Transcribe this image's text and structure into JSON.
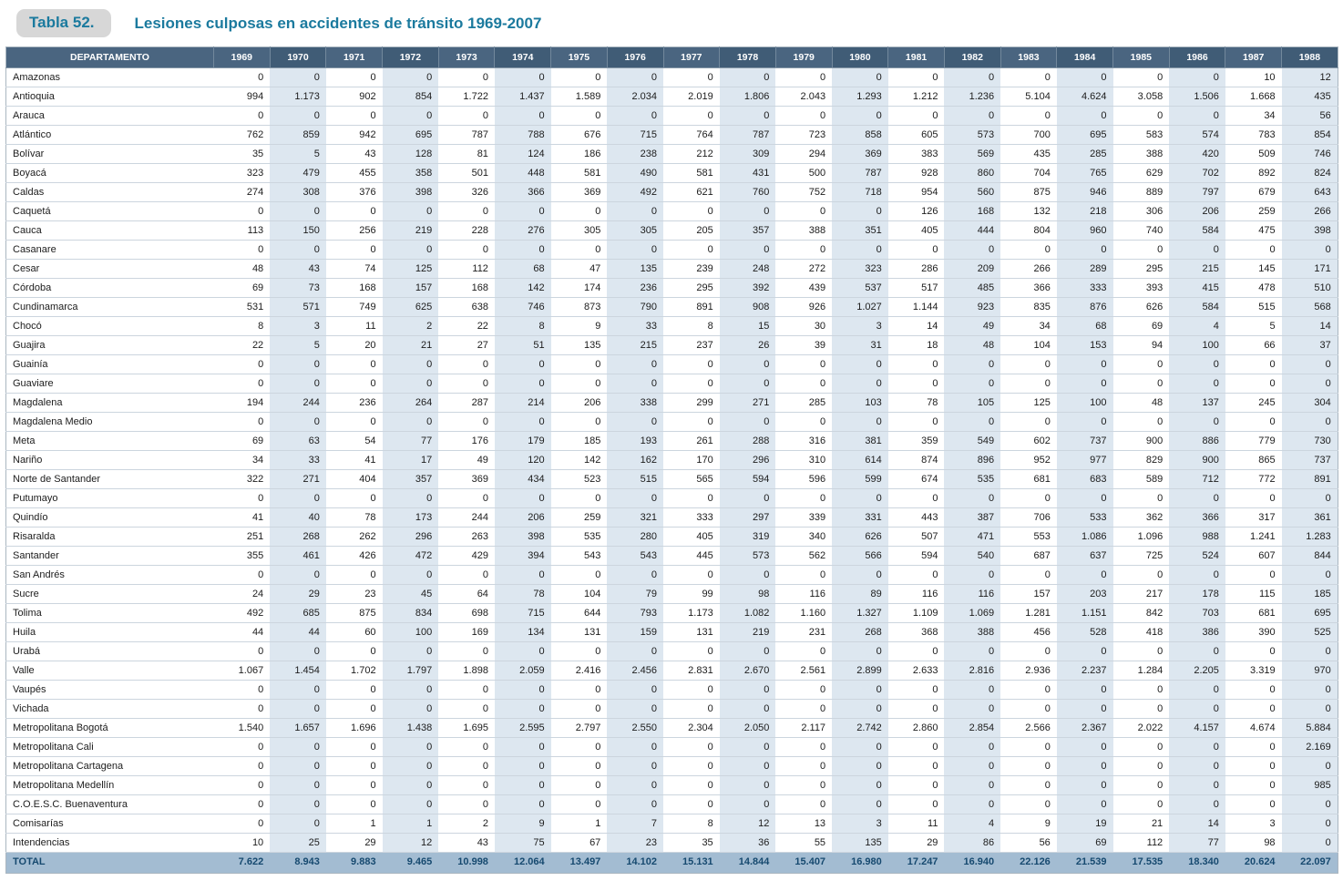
{
  "title": {
    "label": "Tabla 52.",
    "text": "Lesiones culposas en accidentes de tránsito 1969-2007"
  },
  "colors": {
    "accent_teal": "#1b7a9e",
    "header_bg": "#4a6580",
    "column_stripe": "#dde7f0",
    "total_row_bg": "#a3bcd2",
    "total_row_text": "#16496f",
    "badge_bg": "#d7d7d7"
  },
  "table": {
    "columns": [
      "DEPARTAMENTO",
      "1969",
      "1970",
      "1971",
      "1972",
      "1973",
      "1974",
      "1975",
      "1976",
      "1977",
      "1978",
      "1979",
      "1980",
      "1981",
      "1982",
      "1983",
      "1984",
      "1985",
      "1986",
      "1987",
      "1988"
    ],
    "rows": [
      {
        "name": "Amazonas",
        "values": [
          "0",
          "0",
          "0",
          "0",
          "0",
          "0",
          "0",
          "0",
          "0",
          "0",
          "0",
          "0",
          "0",
          "0",
          "0",
          "0",
          "0",
          "0",
          "10",
          "12"
        ]
      },
      {
        "name": "Antioquia",
        "values": [
          "994",
          "1.173",
          "902",
          "854",
          "1.722",
          "1.437",
          "1.589",
          "2.034",
          "2.019",
          "1.806",
          "2.043",
          "1.293",
          "1.212",
          "1.236",
          "5.104",
          "4.624",
          "3.058",
          "1.506",
          "1.668",
          "435"
        ]
      },
      {
        "name": "Arauca",
        "values": [
          "0",
          "0",
          "0",
          "0",
          "0",
          "0",
          "0",
          "0",
          "0",
          "0",
          "0",
          "0",
          "0",
          "0",
          "0",
          "0",
          "0",
          "0",
          "34",
          "56"
        ]
      },
      {
        "name": "Atlántico",
        "values": [
          "762",
          "859",
          "942",
          "695",
          "787",
          "788",
          "676",
          "715",
          "764",
          "787",
          "723",
          "858",
          "605",
          "573",
          "700",
          "695",
          "583",
          "574",
          "783",
          "854"
        ]
      },
      {
        "name": "Bolívar",
        "values": [
          "35",
          "5",
          "43",
          "128",
          "81",
          "124",
          "186",
          "238",
          "212",
          "309",
          "294",
          "369",
          "383",
          "569",
          "435",
          "285",
          "388",
          "420",
          "509",
          "746"
        ]
      },
      {
        "name": "Boyacá",
        "values": [
          "323",
          "479",
          "455",
          "358",
          "501",
          "448",
          "581",
          "490",
          "581",
          "431",
          "500",
          "787",
          "928",
          "860",
          "704",
          "765",
          "629",
          "702",
          "892",
          "824"
        ]
      },
      {
        "name": "Caldas",
        "values": [
          "274",
          "308",
          "376",
          "398",
          "326",
          "366",
          "369",
          "492",
          "621",
          "760",
          "752",
          "718",
          "954",
          "560",
          "875",
          "946",
          "889",
          "797",
          "679",
          "643"
        ]
      },
      {
        "name": "Caquetá",
        "values": [
          "0",
          "0",
          "0",
          "0",
          "0",
          "0",
          "0",
          "0",
          "0",
          "0",
          "0",
          "0",
          "126",
          "168",
          "132",
          "218",
          "306",
          "206",
          "259",
          "266"
        ]
      },
      {
        "name": "Cauca",
        "values": [
          "113",
          "150",
          "256",
          "219",
          "228",
          "276",
          "305",
          "305",
          "205",
          "357",
          "388",
          "351",
          "405",
          "444",
          "804",
          "960",
          "740",
          "584",
          "475",
          "398"
        ]
      },
      {
        "name": "Casanare",
        "values": [
          "0",
          "0",
          "0",
          "0",
          "0",
          "0",
          "0",
          "0",
          "0",
          "0",
          "0",
          "0",
          "0",
          "0",
          "0",
          "0",
          "0",
          "0",
          "0",
          "0"
        ]
      },
      {
        "name": "Cesar",
        "values": [
          "48",
          "43",
          "74",
          "125",
          "112",
          "68",
          "47",
          "135",
          "239",
          "248",
          "272",
          "323",
          "286",
          "209",
          "266",
          "289",
          "295",
          "215",
          "145",
          "171"
        ]
      },
      {
        "name": "Córdoba",
        "values": [
          "69",
          "73",
          "168",
          "157",
          "168",
          "142",
          "174",
          "236",
          "295",
          "392",
          "439",
          "537",
          "517",
          "485",
          "366",
          "333",
          "393",
          "415",
          "478",
          "510"
        ]
      },
      {
        "name": "Cundinamarca",
        "values": [
          "531",
          "571",
          "749",
          "625",
          "638",
          "746",
          "873",
          "790",
          "891",
          "908",
          "926",
          "1.027",
          "1.144",
          "923",
          "835",
          "876",
          "626",
          "584",
          "515",
          "568"
        ]
      },
      {
        "name": "Chocó",
        "values": [
          "8",
          "3",
          "11",
          "2",
          "22",
          "8",
          "9",
          "33",
          "8",
          "15",
          "30",
          "3",
          "14",
          "49",
          "34",
          "68",
          "69",
          "4",
          "5",
          "14"
        ]
      },
      {
        "name": "Guajira",
        "values": [
          "22",
          "5",
          "20",
          "21",
          "27",
          "51",
          "135",
          "215",
          "237",
          "26",
          "39",
          "31",
          "18",
          "48",
          "104",
          "153",
          "94",
          "100",
          "66",
          "37"
        ]
      },
      {
        "name": "Guainía",
        "values": [
          "0",
          "0",
          "0",
          "0",
          "0",
          "0",
          "0",
          "0",
          "0",
          "0",
          "0",
          "0",
          "0",
          "0",
          "0",
          "0",
          "0",
          "0",
          "0",
          "0"
        ]
      },
      {
        "name": "Guaviare",
        "values": [
          "0",
          "0",
          "0",
          "0",
          "0",
          "0",
          "0",
          "0",
          "0",
          "0",
          "0",
          "0",
          "0",
          "0",
          "0",
          "0",
          "0",
          "0",
          "0",
          "0"
        ]
      },
      {
        "name": "Magdalena",
        "values": [
          "194",
          "244",
          "236",
          "264",
          "287",
          "214",
          "206",
          "338",
          "299",
          "271",
          "285",
          "103",
          "78",
          "105",
          "125",
          "100",
          "48",
          "137",
          "245",
          "304"
        ]
      },
      {
        "name": "Magdalena Medio",
        "values": [
          "0",
          "0",
          "0",
          "0",
          "0",
          "0",
          "0",
          "0",
          "0",
          "0",
          "0",
          "0",
          "0",
          "0",
          "0",
          "0",
          "0",
          "0",
          "0",
          "0"
        ]
      },
      {
        "name": "Meta",
        "values": [
          "69",
          "63",
          "54",
          "77",
          "176",
          "179",
          "185",
          "193",
          "261",
          "288",
          "316",
          "381",
          "359",
          "549",
          "602",
          "737",
          "900",
          "886",
          "779",
          "730"
        ]
      },
      {
        "name": "Nariño",
        "values": [
          "34",
          "33",
          "41",
          "17",
          "49",
          "120",
          "142",
          "162",
          "170",
          "296",
          "310",
          "614",
          "874",
          "896",
          "952",
          "977",
          "829",
          "900",
          "865",
          "737"
        ]
      },
      {
        "name": "Norte de Santander",
        "values": [
          "322",
          "271",
          "404",
          "357",
          "369",
          "434",
          "523",
          "515",
          "565",
          "594",
          "596",
          "599",
          "674",
          "535",
          "681",
          "683",
          "589",
          "712",
          "772",
          "891"
        ]
      },
      {
        "name": "Putumayo",
        "values": [
          "0",
          "0",
          "0",
          "0",
          "0",
          "0",
          "0",
          "0",
          "0",
          "0",
          "0",
          "0",
          "0",
          "0",
          "0",
          "0",
          "0",
          "0",
          "0",
          "0"
        ]
      },
      {
        "name": "Quindío",
        "values": [
          "41",
          "40",
          "78",
          "173",
          "244",
          "206",
          "259",
          "321",
          "333",
          "297",
          "339",
          "331",
          "443",
          "387",
          "706",
          "533",
          "362",
          "366",
          "317",
          "361"
        ]
      },
      {
        "name": "Risaralda",
        "values": [
          "251",
          "268",
          "262",
          "296",
          "263",
          "398",
          "535",
          "280",
          "405",
          "319",
          "340",
          "626",
          "507",
          "471",
          "553",
          "1.086",
          "1.096",
          "988",
          "1.241",
          "1.283"
        ]
      },
      {
        "name": "Santander",
        "values": [
          "355",
          "461",
          "426",
          "472",
          "429",
          "394",
          "543",
          "543",
          "445",
          "573",
          "562",
          "566",
          "594",
          "540",
          "687",
          "637",
          "725",
          "524",
          "607",
          "844"
        ]
      },
      {
        "name": "San Andrés",
        "values": [
          "0",
          "0",
          "0",
          "0",
          "0",
          "0",
          "0",
          "0",
          "0",
          "0",
          "0",
          "0",
          "0",
          "0",
          "0",
          "0",
          "0",
          "0",
          "0",
          "0"
        ]
      },
      {
        "name": "Sucre",
        "values": [
          "24",
          "29",
          "23",
          "45",
          "64",
          "78",
          "104",
          "79",
          "99",
          "98",
          "116",
          "89",
          "116",
          "116",
          "157",
          "203",
          "217",
          "178",
          "115",
          "185"
        ]
      },
      {
        "name": "Tolima",
        "values": [
          "492",
          "685",
          "875",
          "834",
          "698",
          "715",
          "644",
          "793",
          "1.173",
          "1.082",
          "1.160",
          "1.327",
          "1.109",
          "1.069",
          "1.281",
          "1.151",
          "842",
          "703",
          "681",
          "695"
        ]
      },
      {
        "name": "Huila",
        "values": [
          "44",
          "44",
          "60",
          "100",
          "169",
          "134",
          "131",
          "159",
          "131",
          "219",
          "231",
          "268",
          "368",
          "388",
          "456",
          "528",
          "418",
          "386",
          "390",
          "525"
        ]
      },
      {
        "name": "Urabá",
        "values": [
          "0",
          "0",
          "0",
          "0",
          "0",
          "0",
          "0",
          "0",
          "0",
          "0",
          "0",
          "0",
          "0",
          "0",
          "0",
          "0",
          "0",
          "0",
          "0",
          "0"
        ]
      },
      {
        "name": "Valle",
        "values": [
          "1.067",
          "1.454",
          "1.702",
          "1.797",
          "1.898",
          "2.059",
          "2.416",
          "2.456",
          "2.831",
          "2.670",
          "2.561",
          "2.899",
          "2.633",
          "2.816",
          "2.936",
          "2.237",
          "1.284",
          "2.205",
          "3.319",
          "970"
        ]
      },
      {
        "name": "Vaupés",
        "values": [
          "0",
          "0",
          "0",
          "0",
          "0",
          "0",
          "0",
          "0",
          "0",
          "0",
          "0",
          "0",
          "0",
          "0",
          "0",
          "0",
          "0",
          "0",
          "0",
          "0"
        ]
      },
      {
        "name": "Vichada",
        "values": [
          "0",
          "0",
          "0",
          "0",
          "0",
          "0",
          "0",
          "0",
          "0",
          "0",
          "0",
          "0",
          "0",
          "0",
          "0",
          "0",
          "0",
          "0",
          "0",
          "0"
        ]
      },
      {
        "name": "Metropolitana Bogotá",
        "values": [
          "1.540",
          "1.657",
          "1.696",
          "1.438",
          "1.695",
          "2.595",
          "2.797",
          "2.550",
          "2.304",
          "2.050",
          "2.117",
          "2.742",
          "2.860",
          "2.854",
          "2.566",
          "2.367",
          "2.022",
          "4.157",
          "4.674",
          "5.884"
        ]
      },
      {
        "name": "Metropolitana Cali",
        "values": [
          "0",
          "0",
          "0",
          "0",
          "0",
          "0",
          "0",
          "0",
          "0",
          "0",
          "0",
          "0",
          "0",
          "0",
          "0",
          "0",
          "0",
          "0",
          "0",
          "2.169"
        ]
      },
      {
        "name": "Metropolitana Cartagena",
        "values": [
          "0",
          "0",
          "0",
          "0",
          "0",
          "0",
          "0",
          "0",
          "0",
          "0",
          "0",
          "0",
          "0",
          "0",
          "0",
          "0",
          "0",
          "0",
          "0",
          "0"
        ]
      },
      {
        "name": "Metropolitana Medellín",
        "values": [
          "0",
          "0",
          "0",
          "0",
          "0",
          "0",
          "0",
          "0",
          "0",
          "0",
          "0",
          "0",
          "0",
          "0",
          "0",
          "0",
          "0",
          "0",
          "0",
          "985"
        ]
      },
      {
        "name": "C.O.E.S.C. Buenaventura",
        "values": [
          "0",
          "0",
          "0",
          "0",
          "0",
          "0",
          "0",
          "0",
          "0",
          "0",
          "0",
          "0",
          "0",
          "0",
          "0",
          "0",
          "0",
          "0",
          "0",
          "0"
        ]
      },
      {
        "name": "Comisarías",
        "values": [
          "0",
          "0",
          "1",
          "1",
          "2",
          "9",
          "1",
          "7",
          "8",
          "12",
          "13",
          "3",
          "11",
          "4",
          "9",
          "19",
          "21",
          "14",
          "3",
          "0"
        ]
      },
      {
        "name": "Intendencias",
        "values": [
          "10",
          "25",
          "29",
          "12",
          "43",
          "75",
          "67",
          "23",
          "35",
          "36",
          "55",
          "135",
          "29",
          "86",
          "56",
          "69",
          "112",
          "77",
          "98",
          "0"
        ]
      }
    ],
    "total_row": {
      "name": "TOTAL",
      "values": [
        "7.622",
        "8.943",
        "9.883",
        "9.465",
        "10.998",
        "12.064",
        "13.497",
        "14.102",
        "15.131",
        "14.844",
        "15.407",
        "16.980",
        "17.247",
        "16.940",
        "22.126",
        "21.539",
        "17.535",
        "18.340",
        "20.624",
        "22.097"
      ]
    }
  }
}
